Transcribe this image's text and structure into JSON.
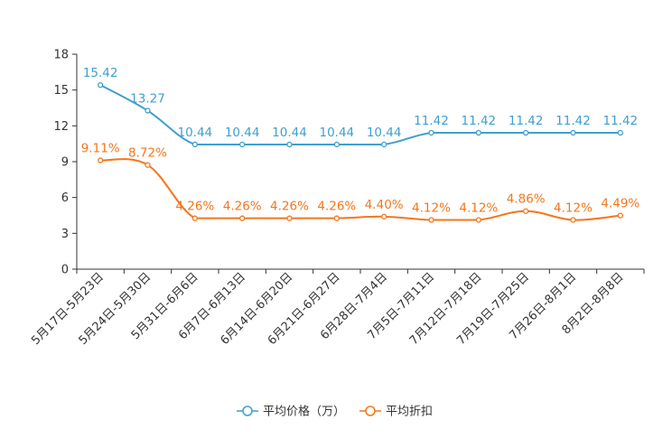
{
  "chart_data": {
    "type": "line",
    "title": "",
    "xlabel": "",
    "ylabel": "",
    "ylim": [
      0,
      18
    ],
    "yticks": [
      0,
      3,
      6,
      9,
      12,
      15,
      18
    ],
    "categories": [
      "5月17日-5月23日",
      "5月24日-5月30日",
      "5月31日-6月6日",
      "6月7日-6月13日",
      "6月14日-6月20日",
      "6月21日-6月27日",
      "6月28日-7月4日",
      "7月5日-7月11日",
      "7月12日-7月18日",
      "7月19日-7月25日",
      "7月26日-8月1日",
      "8月2日-8月8日"
    ],
    "series": [
      {
        "name": "平均价格（万）",
        "color": "#3f9fcf",
        "values": [
          15.42,
          13.27,
          10.44,
          10.44,
          10.44,
          10.44,
          10.44,
          11.42,
          11.42,
          11.42,
          11.42,
          11.42
        ],
        "labels": [
          "15.42",
          "13.27",
          "10.44",
          "10.44",
          "10.44",
          "10.44",
          "10.44",
          "11.42",
          "11.42",
          "11.42",
          "11.42",
          "11.42"
        ]
      },
      {
        "name": "平均折扣",
        "color": "#f4761c",
        "values": [
          9.11,
          8.72,
          4.26,
          4.26,
          4.26,
          4.26,
          4.4,
          4.12,
          4.12,
          4.86,
          4.12,
          4.49
        ],
        "labels": [
          "9.11%",
          "8.72%",
          "4.26%",
          "4.26%",
          "4.26%",
          "4.26%",
          "4.40%",
          "4.12%",
          "4.12%",
          "4.86%",
          "4.12%",
          "4.49%"
        ]
      }
    ],
    "legend_position": "bottom-center",
    "grid": false
  }
}
